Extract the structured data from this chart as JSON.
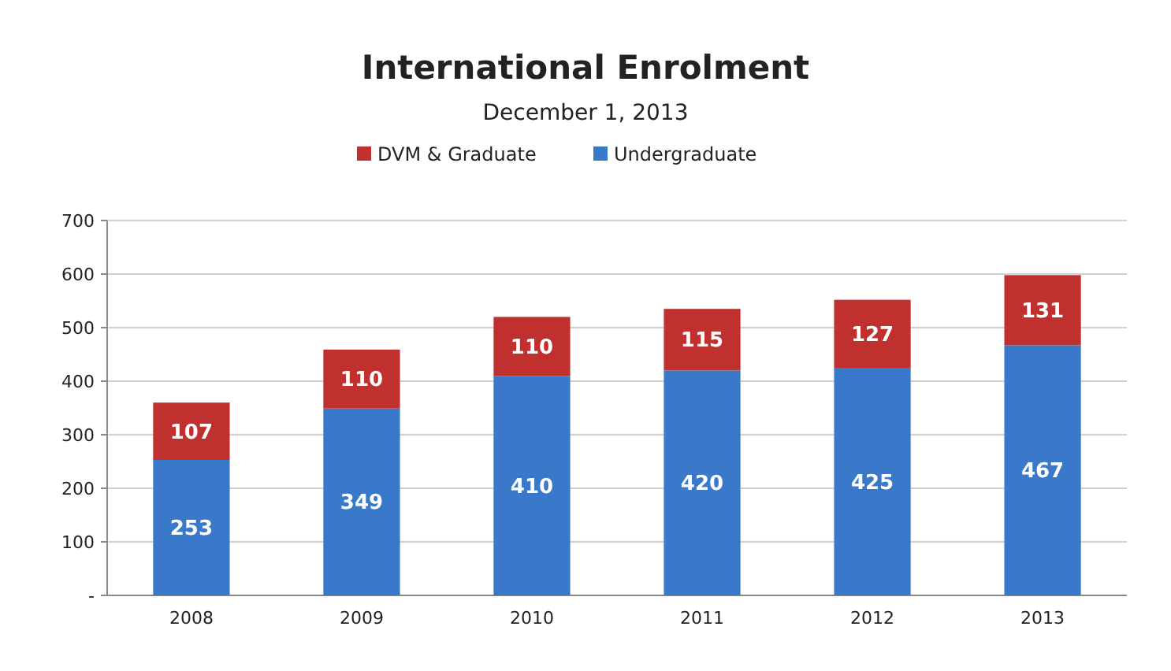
{
  "chart_data": {
    "type": "bar",
    "title": "International Enrolment",
    "subtitle": "December 1, 2013",
    "categories": [
      "2008",
      "2009",
      "2010",
      "2011",
      "2012",
      "2013"
    ],
    "series": [
      {
        "name": "Undergraduate",
        "color": "#3a78c9",
        "values": [
          253,
          349,
          410,
          420,
          425,
          467
        ]
      },
      {
        "name": "DVM & Graduate",
        "color": "#c0302f",
        "values": [
          107,
          110,
          110,
          115,
          127,
          131
        ]
      }
    ],
    "stacked": true,
    "ylim": [
      0,
      700
    ],
    "yticks": [
      {
        "value": 0,
        "label": "-"
      },
      100,
      200,
      300,
      400,
      500,
      600,
      700
    ],
    "grid": "y",
    "legend": "top",
    "data_labels": true
  }
}
